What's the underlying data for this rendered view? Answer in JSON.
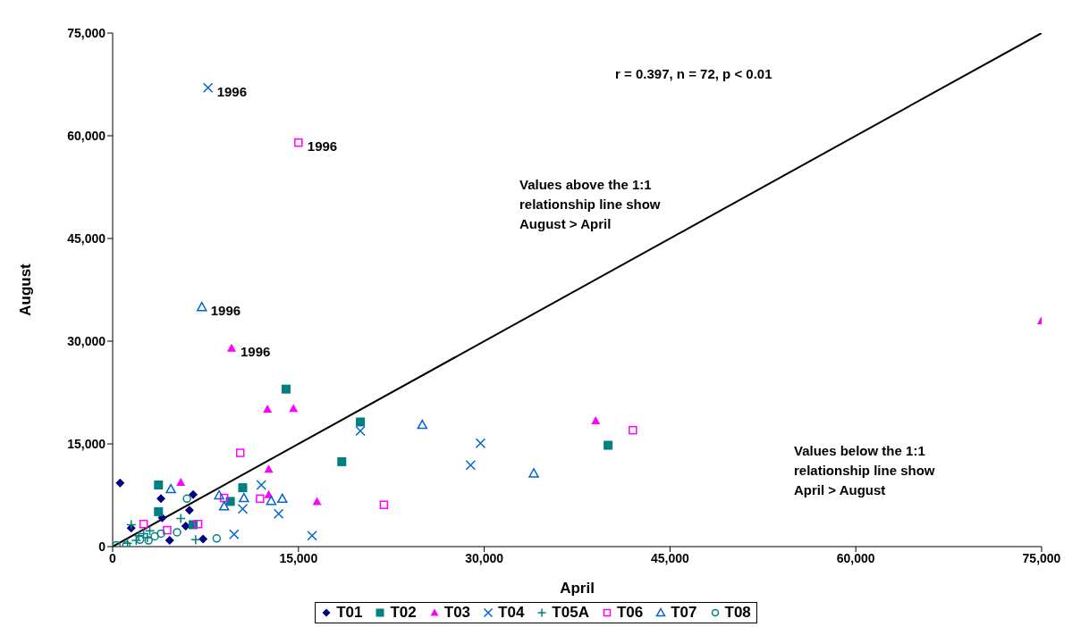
{
  "chart_data": {
    "type": "scatter",
    "xlabel": "April",
    "ylabel": "August",
    "xlim": [
      0,
      75000
    ],
    "ylim": [
      0,
      75000
    ],
    "xticks": [
      0,
      {
        "value": 15000,
        "label": "15,000"
      },
      {
        "value": 30000,
        "label": "30,000"
      },
      {
        "value": 45000,
        "label": "45,000"
      },
      {
        "value": 60000,
        "label": "60,000"
      },
      {
        "value": 75000,
        "label": "75,000"
      }
    ],
    "yticks": [
      0,
      {
        "value": 15000,
        "label": "15,000"
      },
      {
        "value": 30000,
        "label": "30,000"
      },
      {
        "value": 45000,
        "label": "45,000"
      },
      {
        "value": 60000,
        "label": "60,000"
      },
      {
        "value": 75000,
        "label": "75,000"
      }
    ],
    "legend": "bottom",
    "series": [
      {
        "name": "T01",
        "color": "#000080",
        "marker": "diamond",
        "x": [
          600,
          3900,
          6500,
          4000,
          6200,
          5900,
          1500,
          4600,
          7300
        ],
        "values": [
          9300,
          7000,
          7600,
          4200,
          5300,
          3000,
          2700,
          900,
          1100
        ]
      },
      {
        "name": "T02",
        "color": "#008080",
        "marker": "square",
        "x": [
          14000,
          3700,
          3700,
          10500,
          9500,
          6500,
          18500,
          20000,
          40000
        ],
        "values": [
          23000,
          9000,
          5100,
          8600,
          6600,
          3200,
          12400,
          18200,
          14800
        ]
      },
      {
        "name": "T03",
        "color": "#ff00ff",
        "marker": "triangle",
        "x": [
          75000,
          9600,
          12500,
          14600,
          5500,
          12600,
          12600,
          16500,
          39000
        ],
        "values": [
          33000,
          29000,
          20100,
          20200,
          9400,
          11300,
          7600,
          6600,
          18400
        ]
      },
      {
        "name": "T04",
        "color": "#0066cc",
        "marker": "x",
        "x": [
          7700,
          20000,
          12000,
          10500,
          13400,
          16100,
          9800,
          28900,
          29700
        ],
        "values": [
          67000,
          16900,
          9000,
          5500,
          4800,
          1600,
          1800,
          11900,
          15100
        ]
      },
      {
        "name": "T05A",
        "color": "#008080",
        "marker": "cross",
        "x": [
          1500,
          1900,
          2500,
          2800,
          5500,
          6700,
          2100,
          1200,
          3000
        ],
        "values": [
          3200,
          900,
          1900,
          1300,
          4100,
          1000,
          1600,
          500,
          2300
        ]
      },
      {
        "name": "T06",
        "color": "#ff00ff",
        "marker": "square-open",
        "x": [
          15000,
          10300,
          9000,
          11900,
          6900,
          4400,
          2500,
          21900,
          42000
        ],
        "values": [
          59000,
          13700,
          7100,
          7000,
          3300,
          2400,
          3300,
          6100,
          17000
        ]
      },
      {
        "name": "T07",
        "color": "#0066cc",
        "marker": "triangle-open",
        "x": [
          7200,
          25000,
          34000,
          4700,
          8600,
          9000,
          10600,
          12800,
          13700
        ],
        "values": [
          35000,
          17800,
          10700,
          8400,
          7500,
          5900,
          7100,
          6700,
          7000
        ]
      },
      {
        "name": "T08",
        "color": "#008080",
        "marker": "circle-open",
        "x": [
          6000,
          5200,
          8400,
          3900,
          3400,
          2900,
          300,
          1100,
          2200
        ],
        "values": [
          7000,
          2100,
          1200,
          1900,
          1500,
          900,
          200,
          200,
          1000
        ]
      },
      {
        "type": "line",
        "color": "#000000",
        "x": [
          0,
          75000
        ],
        "values": [
          0,
          75000
        ]
      }
    ],
    "annotations": [
      {
        "text": "1996",
        "x": 7700,
        "y": 67000
      },
      {
        "text": "1996",
        "x": 15000,
        "y": 59000
      },
      {
        "text": "1996",
        "x": 7200,
        "y": 35000
      },
      {
        "text": "1996",
        "x": 9600,
        "y": 29000
      },
      "r = 0.397, n = 72, p < 0.01",
      "Values above the 1:1 relationship line show August > April",
      "Values below the 1:1 relationship line show April > August"
    ]
  }
}
